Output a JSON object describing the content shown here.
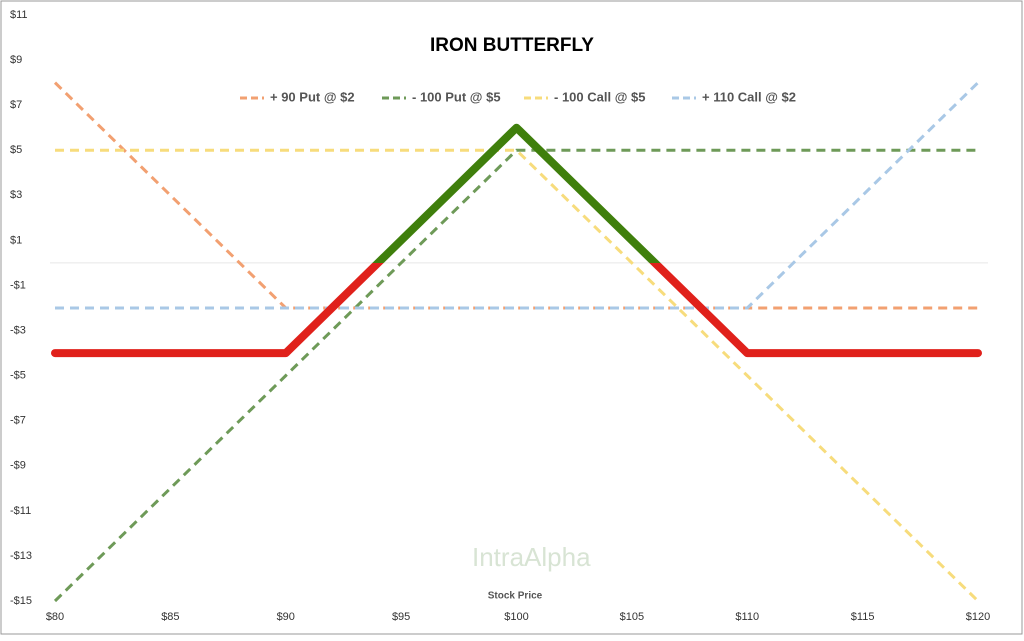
{
  "chart_data": {
    "type": "line",
    "title": "IRON BUTTERFLY",
    "xlabel": "Stock Price",
    "watermark": "IntraAlpha",
    "x": [
      80,
      90,
      100,
      110,
      120
    ],
    "xlim": [
      80,
      120
    ],
    "xticks": [
      {
        "value": 80,
        "label": "$80"
      },
      {
        "value": 85,
        "label": "$85"
      },
      {
        "value": 90,
        "label": "$90"
      },
      {
        "value": 95,
        "label": "$95"
      },
      {
        "value": 100,
        "label": "$100"
      },
      {
        "value": 105,
        "label": "$105"
      },
      {
        "value": 110,
        "label": "$110"
      },
      {
        "value": 115,
        "label": "$115"
      },
      {
        "value": 120,
        "label": "$120"
      }
    ],
    "ylim": [
      -15,
      11
    ],
    "yticks": [
      {
        "value": 11,
        "label": "$11"
      },
      {
        "value": 9,
        "label": "$9"
      },
      {
        "value": 7,
        "label": "$7"
      },
      {
        "value": 5,
        "label": "$5"
      },
      {
        "value": 3,
        "label": "$3"
      },
      {
        "value": 1,
        "label": "$1"
      },
      {
        "value": -1,
        "label": "-$1"
      },
      {
        "value": -3,
        "label": "-$3"
      },
      {
        "value": -5,
        "label": "-$5"
      },
      {
        "value": -7,
        "label": "-$7"
      },
      {
        "value": -9,
        "label": "-$9"
      },
      {
        "value": -11,
        "label": "-$11"
      },
      {
        "value": -13,
        "label": "-$13"
      },
      {
        "value": -15,
        "label": "-$15"
      }
    ],
    "series": [
      {
        "name": "+ 90 Put @ $2",
        "color": "#f2a071",
        "values": [
          8,
          -2,
          -2,
          -2,
          -2
        ]
      },
      {
        "name": "- 100 Put @ $5",
        "color": "#6e9a58",
        "values": [
          -15,
          -5,
          5,
          5,
          5
        ]
      },
      {
        "name": "- 100 Call @ $5",
        "color": "#f7dc7c",
        "values": [
          5,
          5,
          5,
          -5,
          -15
        ]
      },
      {
        "name": "+ 110 Call @ $2",
        "color": "#a9c8e6",
        "values": [
          -2,
          -2,
          -2,
          -2,
          8
        ]
      }
    ],
    "payoff": {
      "values": [
        -4,
        -4,
        6,
        -4,
        -4
      ],
      "color_positive": "#3f7f0c",
      "color_negative": "#e0211b"
    }
  }
}
